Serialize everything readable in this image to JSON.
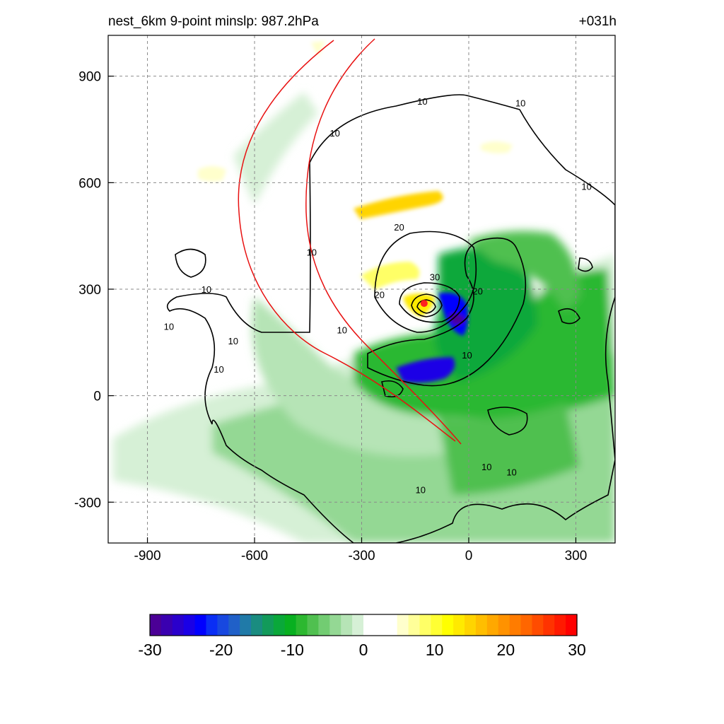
{
  "title": {
    "left": "nest_6km  9-point minslp: 987.2hPa",
    "right": "+031h"
  },
  "chart_data": {
    "type": "heatmap",
    "title": "nest_6km  9-point minslp: 987.2hPa",
    "forecast_hour_label": "+031h",
    "xlim": [
      -1010,
      410
    ],
    "ylim": [
      -415,
      1015
    ],
    "x_ticks": [
      -900,
      -600,
      -300,
      0,
      300
    ],
    "y_ticks": [
      -300,
      0,
      300,
      600,
      900
    ],
    "grid": true,
    "grid_style": "dashed",
    "center_marker": {
      "x": -125,
      "y": 260,
      "color": "#ff2020"
    },
    "contour_labels": [
      {
        "text": "10",
        "x": -130,
        "y": 830
      },
      {
        "text": "10",
        "x": 145,
        "y": 825
      },
      {
        "text": "10",
        "x": -375,
        "y": 740
      },
      {
        "text": "10",
        "x": 330,
        "y": 590
      },
      {
        "text": "20",
        "x": -195,
        "y": 475
      },
      {
        "text": "10",
        "x": -440,
        "y": 405
      },
      {
        "text": "30",
        "x": -95,
        "y": 335
      },
      {
        "text": "20",
        "x": -250,
        "y": 285
      },
      {
        "text": "20",
        "x": 25,
        "y": 295
      },
      {
        "text": "10",
        "x": -735,
        "y": 300
      },
      {
        "text": "10",
        "x": -840,
        "y": 195
      },
      {
        "text": "10",
        "x": -355,
        "y": 185
      },
      {
        "text": "10",
        "x": -660,
        "y": 155
      },
      {
        "text": "10",
        "x": -700,
        "y": 75
      },
      {
        "text": "10",
        "x": -5,
        "y": 115
      },
      {
        "text": "10",
        "x": 50,
        "y": -200
      },
      {
        "text": "10",
        "x": 120,
        "y": -215
      },
      {
        "text": "10",
        "x": -135,
        "y": -265
      }
    ],
    "colorbar": {
      "min": -30,
      "max": 30,
      "ticks": [
        -30,
        -20,
        -10,
        0,
        10,
        20,
        30
      ],
      "colors": [
        "#4b0096",
        "#3a00b0",
        "#2a00cc",
        "#1a00e6",
        "#0000ff",
        "#0a2ef5",
        "#1848e0",
        "#2060c8",
        "#207aa8",
        "#1a8c80",
        "#129a5a",
        "#0aa83a",
        "#08b020",
        "#2cb830",
        "#50c050",
        "#72cc72",
        "#94d894",
        "#b6e4b6",
        "#d6f0d6",
        "#ffffff",
        "#ffffff",
        "#ffffff",
        "#ffffcc",
        "#ffff99",
        "#ffff66",
        "#ffff33",
        "#ffff00",
        "#ffea00",
        "#ffd400",
        "#ffbe00",
        "#ffa800",
        "#ff9200",
        "#ff7c00",
        "#ff6600",
        "#ff4c00",
        "#ff3300",
        "#ff1a00",
        "#ff0000"
      ]
    }
  }
}
